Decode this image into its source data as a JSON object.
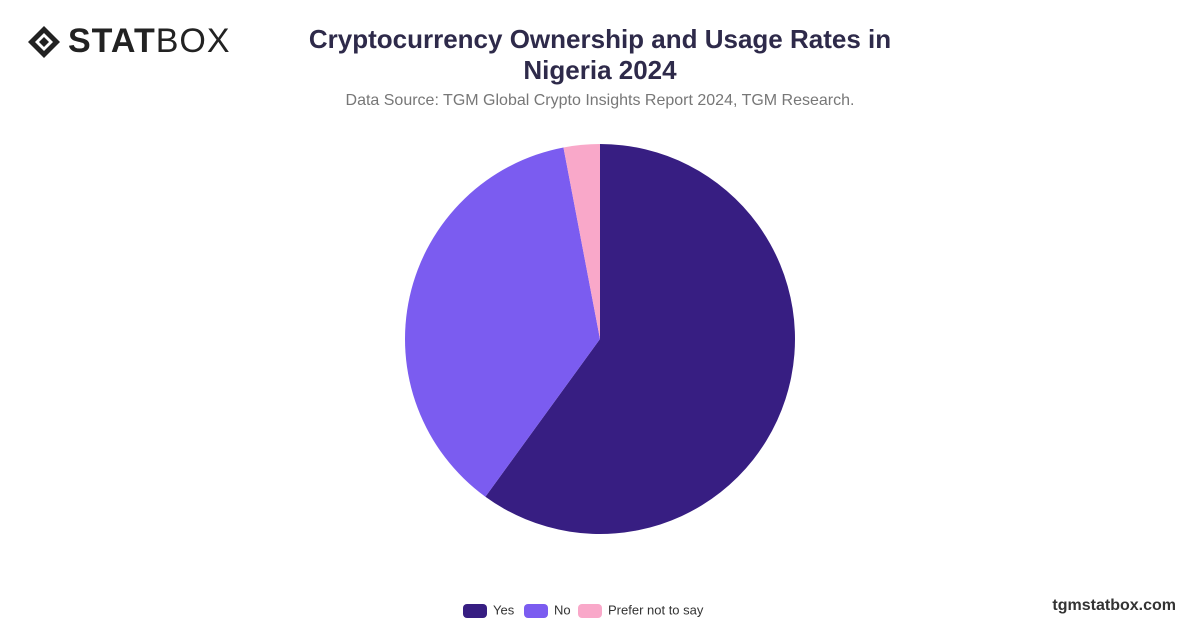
{
  "logo": {
    "bold": "STAT",
    "light": "BOX"
  },
  "footer": "tgmstatbox.com",
  "chart_data": {
    "type": "pie",
    "title": "Cryptocurrency Ownership and Usage Rates in Nigeria 2024",
    "subtitle": "Data Source: TGM Global Crypto Insights Report 2024, TGM Research.",
    "categories": [
      "Yes",
      "No",
      "Prefer not to say"
    ],
    "values": [
      60,
      37,
      3
    ],
    "colors": [
      "#371e82",
      "#7b5cf0",
      "#f9a8c9"
    ],
    "legend": "bottom"
  }
}
